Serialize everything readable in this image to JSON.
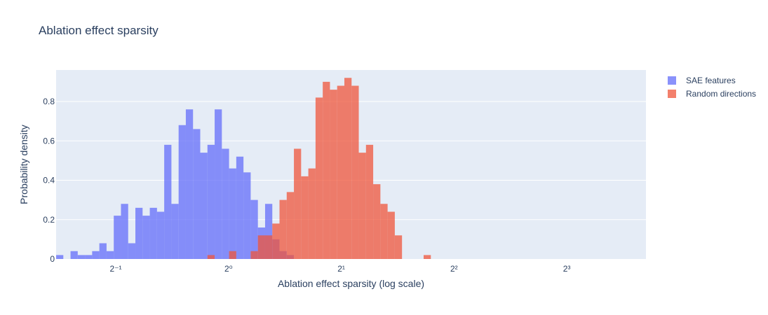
{
  "chart_data": {
    "type": "bar",
    "title": "Ablation effect sparsity",
    "xlabel": "Ablation effect sparsity (log scale)",
    "ylabel": "Probability density",
    "x_scale": "log2",
    "xlim": [
      0.3465,
      13.02
    ],
    "ylim": [
      0,
      0.96
    ],
    "x_ticks": [
      {
        "value": 0.5,
        "label": "2⁻¹"
      },
      {
        "value": 1,
        "label": "2⁰"
      },
      {
        "value": 2,
        "label": "2¹"
      },
      {
        "value": 4,
        "label": "2²"
      },
      {
        "value": 8,
        "label": "2³"
      }
    ],
    "y_ticks": [
      {
        "value": 0,
        "label": "0"
      },
      {
        "value": 0.2,
        "label": "0.2"
      },
      {
        "value": 0.4,
        "label": "0.4"
      },
      {
        "value": 0.6,
        "label": "0.6"
      },
      {
        "value": 0.8,
        "label": "0.8"
      }
    ],
    "bin_start": 0.3465,
    "bin_ratio": 1.0453,
    "grid": true,
    "legend_position": "top-right",
    "series": [
      {
        "name": "SAE features",
        "color": "#636efa",
        "opacity": 0.75,
        "values": [
          0.02,
          0,
          0.04,
          0.02,
          0.02,
          0.04,
          0.08,
          0.04,
          0.22,
          0.28,
          0.08,
          0.26,
          0.22,
          0.26,
          0.24,
          0.58,
          0.28,
          0.68,
          0.76,
          0.66,
          0.54,
          0.58,
          0.76,
          0.56,
          0.46,
          0.52,
          0.44,
          0.3,
          0.16,
          0.28,
          0.1,
          0.04,
          0.02,
          0,
          0,
          0,
          0,
          0,
          0,
          0,
          0,
          0,
          0,
          0,
          0,
          0,
          0,
          0,
          0,
          0,
          0,
          0
        ]
      },
      {
        "name": "Random directions",
        "color": "#EF553B",
        "opacity": 0.75,
        "values": [
          0,
          0,
          0,
          0,
          0,
          0,
          0,
          0,
          0,
          0,
          0,
          0,
          0,
          0,
          0,
          0,
          0,
          0,
          0,
          0,
          0,
          0.02,
          0,
          0,
          0.04,
          0,
          0,
          0.04,
          0.12,
          0.12,
          0.18,
          0.3,
          0.34,
          0.56,
          0.42,
          0.46,
          0.82,
          0.9,
          0.86,
          0.88,
          0.92,
          0.88,
          0.54,
          0.58,
          0.38,
          0.28,
          0.24,
          0.12,
          0,
          0,
          0,
          0.02
        ]
      }
    ]
  }
}
